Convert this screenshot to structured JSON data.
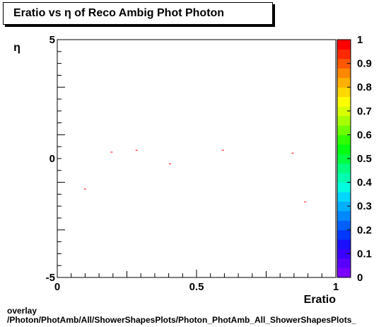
{
  "title": "Eratio vs  η of Reco Ambig Phot Photon",
  "footer": {
    "line1": "overlay",
    "line2": "/Photon/PhotAmb/All/ShowerShapesPlots/Photon_PhotAmb_All_ShowerShapesPlots_"
  },
  "chart_data": {
    "type": "scatter",
    "xlabel": "Eratio",
    "ylabel": "η",
    "xlim": [
      0,
      1
    ],
    "ylim": [
      -5,
      5
    ],
    "x_ticks": [
      "0",
      "0.5",
      "1"
    ],
    "y_ticks": [
      "-5",
      "0",
      "5"
    ],
    "marker_color": "#ff0000",
    "points": [
      {
        "x": 0.1,
        "y": -1.28
      },
      {
        "x": 0.195,
        "y": 0.27
      },
      {
        "x": 0.285,
        "y": 0.35
      },
      {
        "x": 0.405,
        "y": -0.22
      },
      {
        "x": 0.595,
        "y": 0.35
      },
      {
        "x": 0.845,
        "y": 0.23
      },
      {
        "x": 0.89,
        "y": -1.82
      }
    ],
    "colorbar": {
      "range": [
        0,
        1
      ],
      "tick_labels": [
        "0",
        "0.1",
        "0.2",
        "0.3",
        "0.4",
        "0.5",
        "0.6",
        "0.7",
        "0.8",
        "0.9",
        "1"
      ],
      "colors": [
        "#7a00ff",
        "#5a00ff",
        "#3a00ff",
        "#1a10ff",
        "#0038ff",
        "#0060ff",
        "#0088ff",
        "#00b0ff",
        "#00d8ff",
        "#00ffe0",
        "#00ffb0",
        "#00ff80",
        "#00ff40",
        "#00ff10",
        "#30ff00",
        "#70ff00",
        "#a8ff00",
        "#d8ff00",
        "#ffff00",
        "#ffd800",
        "#ffb000",
        "#ff8800",
        "#ff5800",
        "#ff2800",
        "#ff0000"
      ]
    }
  }
}
